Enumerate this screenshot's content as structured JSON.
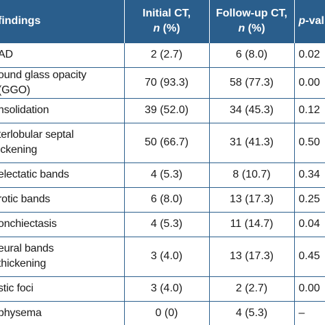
{
  "header": {
    "col1": "findings",
    "col2_line1": "Initial CT,",
    "col2_n": "n",
    "col2_pct": " (%)",
    "col3_line1": "Follow-up CT,",
    "col3_n": "n",
    "col3_pct": " (%)",
    "col4_p": "p",
    "col4_rest": "-val"
  },
  "rows": [
    {
      "finding": "AD",
      "initial": "2 (2.7)",
      "followup": "6 (8.0)",
      "p": "0.02"
    },
    {
      "finding": "ound glass opacity (GGO)",
      "initial": "70 (93.3)",
      "followup": "58 (77.3)",
      "p": "0.00"
    },
    {
      "finding": "nsolidation",
      "initial": "39 (52.0)",
      "followup": "34 (45.3)",
      "p": "0.12"
    },
    {
      "finding": "terlobular septal\nickening",
      "initial": "50 (66.7)",
      "followup": "31 (41.3)",
      "p": "0.50"
    },
    {
      "finding": "electatic bands",
      "initial": "4 (5.3)",
      "followup": "8 (10.7)",
      "p": "0.34"
    },
    {
      "finding": "rotic bands",
      "initial": "6 (8.0)",
      "followup": "13 (17.3)",
      "p": "0.25"
    },
    {
      "finding": "onchiectasis",
      "initial": "4 (5.3)",
      "followup": "11 (14.7)",
      "p": "0.04"
    },
    {
      "finding": "eural bands\nthickening",
      "initial": "3 (4.0)",
      "followup": "13 (17.3)",
      "p": "0.45"
    },
    {
      "finding": "stic foci",
      "initial": "3 (4.0)",
      "followup": "2 (2.7)",
      "p": "0.00"
    },
    {
      "finding": "physema",
      "initial": "0 (0)",
      "followup": "4 (5.3)",
      "p": "–"
    }
  ],
  "colors": {
    "header_bg": "#2a5e8c",
    "header_text": "#ffffff",
    "rule": "#2a5e8c"
  }
}
